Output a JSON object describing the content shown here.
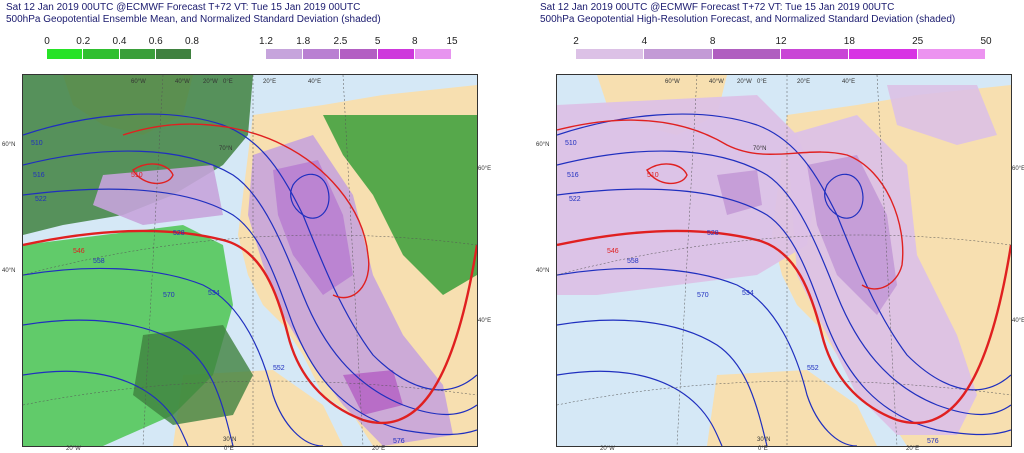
{
  "panels": {
    "left": {
      "title_line1": "Sat 12 Jan 2019 00UTC @ECMWF Forecast T+72 VT: Tue 15 Jan 2019 00UTC",
      "title_line2": "500hPa Geopotential Ensemble Mean, and Normalized Standard Deviation (shaded)",
      "scale_green": {
        "ticks": [
          "0",
          "0.2",
          "0.4",
          "0.6",
          "0.8"
        ],
        "colors": [
          "#27e227",
          "#2fbf2f",
          "#3a9f3a",
          "#3f813f"
        ]
      },
      "scale_purple": {
        "ticks": [
          "1.2",
          "1.8",
          "2.5",
          "5",
          "8",
          "15"
        ],
        "colors": [
          "#c6a4dc",
          "#b980d2",
          "#b35ec3",
          "#ce38dc",
          "#e794ef"
        ]
      },
      "contour_labels": [
        "510",
        "516",
        "522",
        "528",
        "534",
        "546",
        "558",
        "570",
        "576",
        "510",
        "552"
      ]
    },
    "right": {
      "title_line1": "Sat 12 Jan 2019 00UTC @ECMWF Forecast T+72 VT: Tue 15 Jan 2019 00UTC",
      "title_line2": "500hPa Geopotential High-Resolution Forecast, and Normalized Standard Deviation (shaded)",
      "scale": {
        "ticks": [
          "2",
          "4",
          "8",
          "12",
          "18",
          "25",
          "50"
        ],
        "colors": [
          "#dcc1e6",
          "#c39ad6",
          "#b05ec0",
          "#c946d6",
          "#d834e4",
          "#ec93f0"
        ]
      },
      "contour_labels": [
        "510",
        "516",
        "522",
        "528",
        "534",
        "546",
        "558",
        "570",
        "576",
        "510",
        "552"
      ]
    }
  },
  "coords": {
    "lon": [
      "60°W",
      "40°W",
      "20°W",
      "0°E",
      "20°E",
      "40°E",
      "60°E",
      "20°W",
      "0°E",
      "20°E"
    ],
    "lat": [
      "60°N",
      "40°N",
      "60°E",
      "40°E",
      "30°N",
      "70°N"
    ]
  },
  "colors": {
    "ocean": "#d5e8f6",
    "land": "#f7dfb0",
    "contour_blue": "#1f2fbf",
    "contour_red": "#e02020",
    "title_text": "#1a1a6e"
  }
}
